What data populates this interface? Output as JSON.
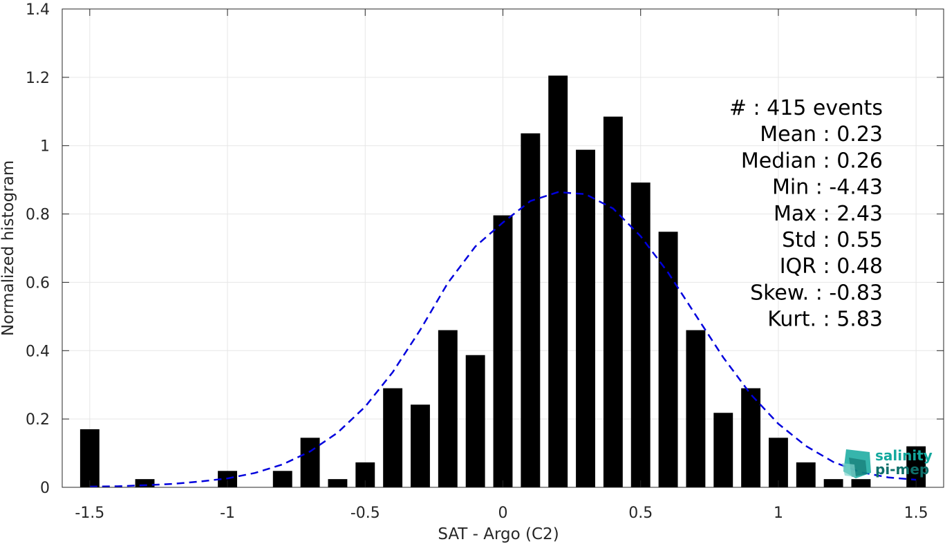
{
  "chart_data": {
    "type": "bar",
    "xlabel": "SAT - Argo (C2)",
    "ylabel": "Normalized histogram",
    "xlim": [
      -1.6,
      1.6
    ],
    "ylim": [
      0,
      1.4
    ],
    "grid": true,
    "colors": {
      "bars": "#000000",
      "fit": "#0000dd",
      "grid": "#e6e6e6",
      "axis": "#262626"
    },
    "x_ticks": [
      -1.5,
      -1,
      -0.5,
      0,
      0.5,
      1,
      1.5
    ],
    "x_tick_labels": [
      "-1.5",
      "-1",
      "-0.5",
      "0",
      "0.5",
      "1",
      "1.5"
    ],
    "y_ticks": [
      0,
      0.2,
      0.4,
      0.6,
      0.8,
      1,
      1.2,
      1.4
    ],
    "y_tick_labels": [
      "0",
      "0.2",
      "0.4",
      "0.6",
      "0.8",
      "1",
      "1.2",
      "1.4"
    ],
    "bar_width": 0.07,
    "bars": [
      {
        "x": -1.5,
        "y": 0.17
      },
      {
        "x": -1.3,
        "y": 0.024
      },
      {
        "x": -1.0,
        "y": 0.048
      },
      {
        "x": -0.8,
        "y": 0.048
      },
      {
        "x": -0.7,
        "y": 0.145
      },
      {
        "x": -0.6,
        "y": 0.024
      },
      {
        "x": -0.5,
        "y": 0.073
      },
      {
        "x": -0.4,
        "y": 0.29
      },
      {
        "x": -0.3,
        "y": 0.242
      },
      {
        "x": -0.2,
        "y": 0.46
      },
      {
        "x": -0.1,
        "y": 0.387
      },
      {
        "x": 0.0,
        "y": 0.796
      },
      {
        "x": 0.1,
        "y": 1.036
      },
      {
        "x": 0.2,
        "y": 1.205
      },
      {
        "x": 0.3,
        "y": 0.988
      },
      {
        "x": 0.4,
        "y": 1.085
      },
      {
        "x": 0.5,
        "y": 0.892
      },
      {
        "x": 0.6,
        "y": 0.748
      },
      {
        "x": 0.7,
        "y": 0.46
      },
      {
        "x": 0.8,
        "y": 0.218
      },
      {
        "x": 0.9,
        "y": 0.29
      },
      {
        "x": 1.0,
        "y": 0.145
      },
      {
        "x": 1.1,
        "y": 0.073
      },
      {
        "x": 1.2,
        "y": 0.024
      },
      {
        "x": 1.3,
        "y": 0.024
      },
      {
        "x": 1.5,
        "y": 0.12
      }
    ],
    "fit_curve": {
      "style": "dashed",
      "points": [
        {
          "x": -1.5,
          "y": 0.002
        },
        {
          "x": -1.4,
          "y": 0.003
        },
        {
          "x": -1.3,
          "y": 0.006
        },
        {
          "x": -1.2,
          "y": 0.01
        },
        {
          "x": -1.1,
          "y": 0.017
        },
        {
          "x": -1.0,
          "y": 0.026
        },
        {
          "x": -0.9,
          "y": 0.042
        },
        {
          "x": -0.8,
          "y": 0.067
        },
        {
          "x": -0.7,
          "y": 0.105
        },
        {
          "x": -0.6,
          "y": 0.16
        },
        {
          "x": -0.5,
          "y": 0.236
        },
        {
          "x": -0.4,
          "y": 0.337
        },
        {
          "x": -0.3,
          "y": 0.461
        },
        {
          "x": -0.2,
          "y": 0.598
        },
        {
          "x": -0.1,
          "y": 0.705
        },
        {
          "x": 0.0,
          "y": 0.775
        },
        {
          "x": 0.1,
          "y": 0.838
        },
        {
          "x": 0.2,
          "y": 0.864
        },
        {
          "x": 0.3,
          "y": 0.858
        },
        {
          "x": 0.4,
          "y": 0.816
        },
        {
          "x": 0.5,
          "y": 0.735
        },
        {
          "x": 0.6,
          "y": 0.628
        },
        {
          "x": 0.7,
          "y": 0.504
        },
        {
          "x": 0.8,
          "y": 0.38
        },
        {
          "x": 0.9,
          "y": 0.272
        },
        {
          "x": 1.0,
          "y": 0.186
        },
        {
          "x": 1.1,
          "y": 0.121
        },
        {
          "x": 1.2,
          "y": 0.074
        },
        {
          "x": 1.3,
          "y": 0.044
        },
        {
          "x": 1.4,
          "y": 0.029
        },
        {
          "x": 1.5,
          "y": 0.022
        }
      ]
    },
    "stats": [
      {
        "label": "#  : 415 events"
      },
      {
        "label": "Mean : 0.23"
      },
      {
        "label": "Median : 0.26"
      },
      {
        "label": "Min : -4.43"
      },
      {
        "label": "Max : 2.43"
      },
      {
        "label": "Std : 0.55"
      },
      {
        "label": "IQR : 0.48"
      },
      {
        "label": "Skew. : -0.83"
      },
      {
        "label": "Kurt. : 5.83"
      }
    ]
  },
  "logo": {
    "line1": "salinity",
    "line2": "pi-mep",
    "color": "#13a89e",
    "color_dark": "#0f6f6a"
  }
}
